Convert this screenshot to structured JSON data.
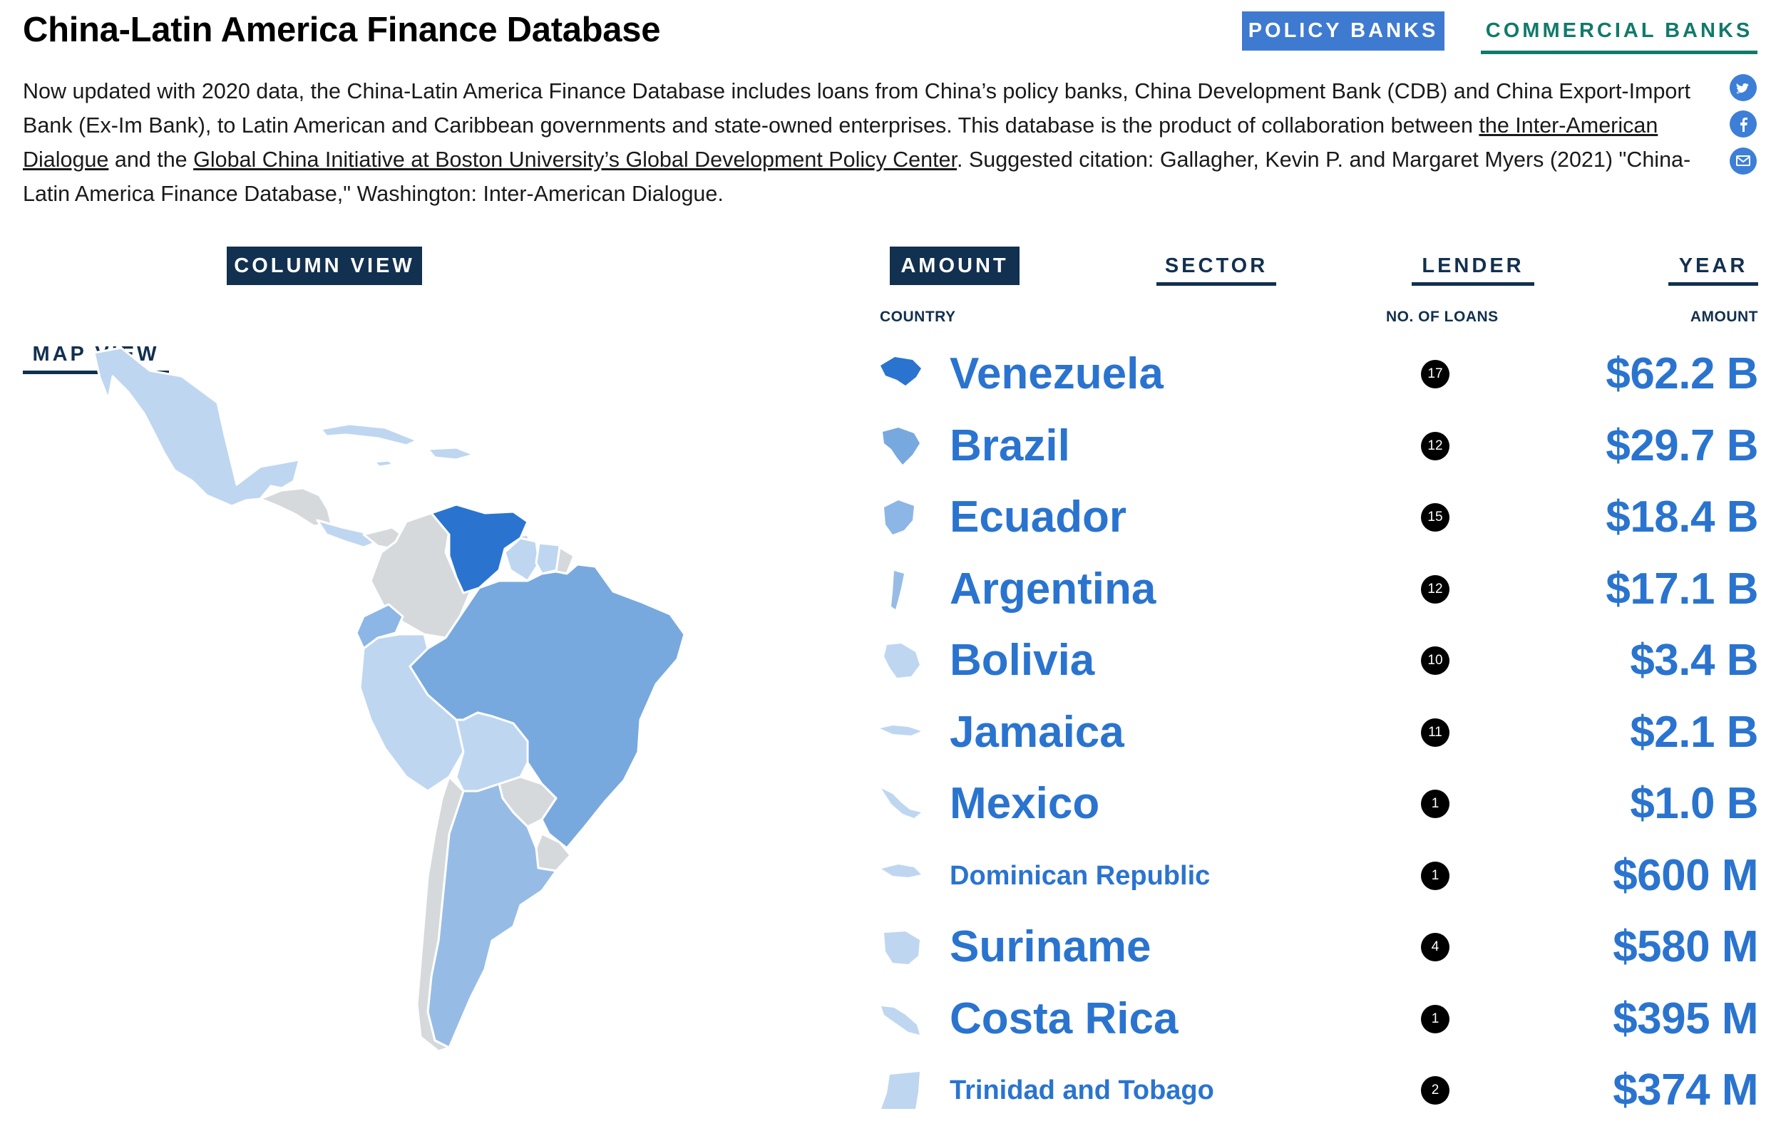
{
  "page": {
    "title": "China-Latin America Finance Database"
  },
  "bank_tabs": {
    "policy": "POLICY BANKS",
    "commercial": "COMMERCIAL BANKS"
  },
  "intro": {
    "p1": "Now updated with 2020 data, the China-Latin America Finance Database includes loans from China’s policy banks, China Development Bank (CDB) and China Export-Import Bank (Ex-Im Bank), to Latin American and Caribbean governments and state-owned enterprises. This database is the product of collaboration between ",
    "link1": "the Inter-American Dialogue",
    "p2": " and the ",
    "link2": "Global China Initiative at Boston University’s Global Development Policy Center",
    "p3": ". Suggested citation: Gallagher, Kevin P. and Margaret Myers (2021) \"China-Latin America Finance Database,\" Washington: Inter-American Dialogue."
  },
  "share": {
    "twitter": "twitter-icon",
    "facebook": "facebook-icon",
    "email": "mail-icon"
  },
  "view_tabs": {
    "map": "MAP VIEW",
    "column": "COLUMN VIEW",
    "active": "column"
  },
  "sort_tabs": {
    "amount": "AMOUNT",
    "sector": "SECTOR",
    "lender": "LENDER",
    "year": "YEAR",
    "active": "amount"
  },
  "columns": {
    "country": "COUNTRY",
    "loans": "NO. OF LOANS",
    "amount": "AMOUNT"
  },
  "colors": {
    "accent": "#2a74cf",
    "navy": "#12304f",
    "teal": "#117a6b",
    "map_darkest": "#2a74cf",
    "map_dark": "#78a9de",
    "map_mid": "#96bce6",
    "map_light": "#bfd6f1",
    "map_none": "#d6d9dc"
  },
  "countries": [
    {
      "name": "Venezuela",
      "loans": "17",
      "amount": "$62.2 B",
      "size": "big",
      "color": "#2a74cf"
    },
    {
      "name": "Brazil",
      "loans": "12",
      "amount": "$29.7 B",
      "size": "big",
      "color": "#78a9de"
    },
    {
      "name": "Ecuador",
      "loans": "15",
      "amount": "$18.4 B",
      "size": "big",
      "color": "#8cb6e5"
    },
    {
      "name": "Argentina",
      "loans": "12",
      "amount": "$17.1 B",
      "size": "big",
      "color": "#96bce6"
    },
    {
      "name": "Bolivia",
      "loans": "10",
      "amount": "$3.4 B",
      "size": "big",
      "color": "#bfd6f1"
    },
    {
      "name": "Jamaica",
      "loans": "11",
      "amount": "$2.1 B",
      "size": "big",
      "color": "#bfd6f1"
    },
    {
      "name": "Mexico",
      "loans": "1",
      "amount": "$1.0 B",
      "size": "big",
      "color": "#bfd6f1"
    },
    {
      "name": "Dominican Republic",
      "loans": "1",
      "amount": "$600 M",
      "size": "small",
      "color": "#bfd6f1"
    },
    {
      "name": "Suriname",
      "loans": "4",
      "amount": "$580 M",
      "size": "big",
      "color": "#bfd6f1"
    },
    {
      "name": "Costa Rica",
      "loans": "1",
      "amount": "$395 M",
      "size": "big",
      "color": "#bfd6f1"
    },
    {
      "name": "Trinidad and Tobago",
      "loans": "2",
      "amount": "$374 M",
      "size": "small",
      "color": "#bfd6f1"
    }
  ]
}
